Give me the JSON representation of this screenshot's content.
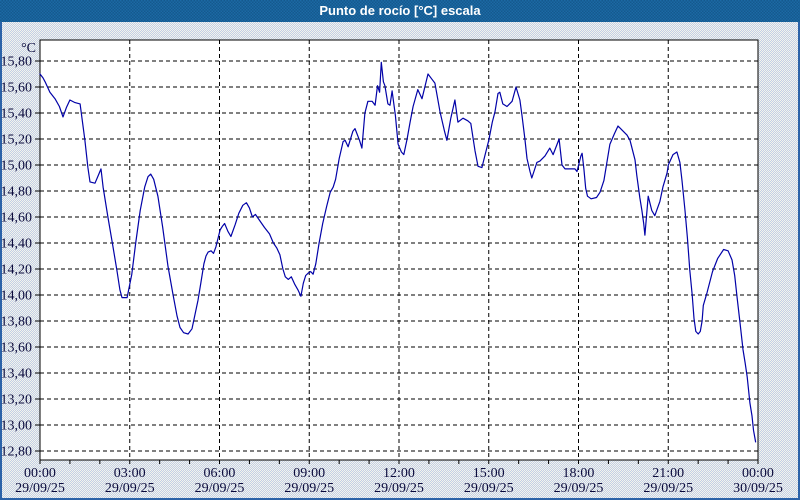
{
  "window": {
    "title": "Punto de rocío [°C] escala",
    "colors": {
      "titlebar": "#1c69a4",
      "border": "#2b62a8",
      "background": "#f3f4ed",
      "plot_background": "#ffffff",
      "grid": "#000000",
      "label": "#0b0b3c",
      "line": "#0202a8",
      "title_text": "#ffffff"
    }
  },
  "chart_data": {
    "type": "line",
    "title": "Punto de rocío [°C] escala",
    "ylabel": "°C",
    "unit_label": "°C",
    "ylim": [
      12.8,
      15.8
    ],
    "y_tick_step": 0.2,
    "grid": "dotted",
    "legend_position": "none",
    "y_tick_labels": [
      "15,80",
      "15,60",
      "15,40",
      "15,20",
      "15,00",
      "14,80",
      "14,60",
      "14,40",
      "14,20",
      "14,00",
      "13,80",
      "13,60",
      "13,40",
      "13,20",
      "13,00",
      "12,80"
    ],
    "y_tick_values": [
      15.8,
      15.6,
      15.4,
      15.2,
      15.0,
      14.8,
      14.6,
      14.4,
      14.2,
      14.0,
      13.8,
      13.6,
      13.4,
      13.2,
      13.0,
      12.8
    ],
    "x_range_hours": [
      0,
      24
    ],
    "x_minor_tick_hours": 1,
    "x_major_ticks": [
      {
        "hour": 0,
        "time": "00:00",
        "date": "29/09/25"
      },
      {
        "hour": 3,
        "time": "03:00",
        "date": "29/09/25"
      },
      {
        "hour": 6,
        "time": "06:00",
        "date": "29/09/25"
      },
      {
        "hour": 9,
        "time": "09:00",
        "date": "29/09/25"
      },
      {
        "hour": 12,
        "time": "12:00",
        "date": "29/09/25"
      },
      {
        "hour": 15,
        "time": "15:00",
        "date": "29/09/25"
      },
      {
        "hour": 18,
        "time": "18:00",
        "date": "29/09/25"
      },
      {
        "hour": 21,
        "time": "21:00",
        "date": "29/09/25"
      },
      {
        "hour": 24,
        "time": "00:00",
        "date": "30/09/25"
      }
    ],
    "series": [
      {
        "name": "Punto de rocío",
        "color": "#0202a8",
        "points_hour_value": [
          [
            0.0,
            15.7
          ],
          [
            0.1,
            15.67
          ],
          [
            0.17,
            15.64
          ],
          [
            0.33,
            15.56
          ],
          [
            0.5,
            15.51
          ],
          [
            0.65,
            15.45
          ],
          [
            0.77,
            15.37
          ],
          [
            0.88,
            15.44
          ],
          [
            1.0,
            15.5
          ],
          [
            1.17,
            15.48
          ],
          [
            1.34,
            15.47
          ],
          [
            1.5,
            15.19
          ],
          [
            1.6,
            14.98
          ],
          [
            1.67,
            14.87
          ],
          [
            1.84,
            14.86
          ],
          [
            1.95,
            14.92
          ],
          [
            2.04,
            14.97
          ],
          [
            2.11,
            14.83
          ],
          [
            2.27,
            14.6
          ],
          [
            2.44,
            14.37
          ],
          [
            2.57,
            14.19
          ],
          [
            2.67,
            14.04
          ],
          [
            2.74,
            13.98
          ],
          [
            2.91,
            13.98
          ],
          [
            3.07,
            14.16
          ],
          [
            3.2,
            14.4
          ],
          [
            3.35,
            14.65
          ],
          [
            3.5,
            14.83
          ],
          [
            3.61,
            14.91
          ],
          [
            3.7,
            14.93
          ],
          [
            3.8,
            14.89
          ],
          [
            3.94,
            14.76
          ],
          [
            4.1,
            14.52
          ],
          [
            4.28,
            14.22
          ],
          [
            4.45,
            14.0
          ],
          [
            4.58,
            13.84
          ],
          [
            4.68,
            13.75
          ],
          [
            4.8,
            13.71
          ],
          [
            4.95,
            13.7
          ],
          [
            5.08,
            13.74
          ],
          [
            5.18,
            13.85
          ],
          [
            5.28,
            13.96
          ],
          [
            5.38,
            14.1
          ],
          [
            5.48,
            14.24
          ],
          [
            5.55,
            14.3
          ],
          [
            5.62,
            14.33
          ],
          [
            5.72,
            14.34
          ],
          [
            5.8,
            14.32
          ],
          [
            5.88,
            14.37
          ],
          [
            6.02,
            14.5
          ],
          [
            6.1,
            14.53
          ],
          [
            6.17,
            14.55
          ],
          [
            6.28,
            14.49
          ],
          [
            6.38,
            14.45
          ],
          [
            6.52,
            14.54
          ],
          [
            6.65,
            14.63
          ],
          [
            6.78,
            14.69
          ],
          [
            6.9,
            14.71
          ],
          [
            7.0,
            14.67
          ],
          [
            7.1,
            14.6
          ],
          [
            7.2,
            14.62
          ],
          [
            7.35,
            14.57
          ],
          [
            7.5,
            14.52
          ],
          [
            7.67,
            14.47
          ],
          [
            7.8,
            14.4
          ],
          [
            7.92,
            14.36
          ],
          [
            8.02,
            14.31
          ],
          [
            8.12,
            14.2
          ],
          [
            8.2,
            14.14
          ],
          [
            8.3,
            14.12
          ],
          [
            8.4,
            14.14
          ],
          [
            8.52,
            14.08
          ],
          [
            8.62,
            14.04
          ],
          [
            8.72,
            13.99
          ],
          [
            8.8,
            14.09
          ],
          [
            8.88,
            14.15
          ],
          [
            8.97,
            14.17
          ],
          [
            9.05,
            14.18
          ],
          [
            9.13,
            14.16
          ],
          [
            9.22,
            14.24
          ],
          [
            9.33,
            14.4
          ],
          [
            9.45,
            14.55
          ],
          [
            9.58,
            14.68
          ],
          [
            9.7,
            14.79
          ],
          [
            9.8,
            14.83
          ],
          [
            9.88,
            14.89
          ],
          [
            10.0,
            15.05
          ],
          [
            10.13,
            15.18
          ],
          [
            10.2,
            15.19
          ],
          [
            10.3,
            15.14
          ],
          [
            10.46,
            15.26
          ],
          [
            10.53,
            15.28
          ],
          [
            10.68,
            15.19
          ],
          [
            10.76,
            15.13
          ],
          [
            10.86,
            15.4
          ],
          [
            10.96,
            15.49
          ],
          [
            11.1,
            15.49
          ],
          [
            11.2,
            15.46
          ],
          [
            11.28,
            15.61
          ],
          [
            11.35,
            15.56
          ],
          [
            11.41,
            15.79
          ],
          [
            11.48,
            15.64
          ],
          [
            11.53,
            15.61
          ],
          [
            11.63,
            15.47
          ],
          [
            11.7,
            15.46
          ],
          [
            11.77,
            15.57
          ],
          [
            11.88,
            15.38
          ],
          [
            11.97,
            15.16
          ],
          [
            12.08,
            15.1
          ],
          [
            12.16,
            15.08
          ],
          [
            12.27,
            15.2
          ],
          [
            12.37,
            15.33
          ],
          [
            12.47,
            15.45
          ],
          [
            12.63,
            15.58
          ],
          [
            12.77,
            15.51
          ],
          [
            12.97,
            15.7
          ],
          [
            13.1,
            15.66
          ],
          [
            13.2,
            15.63
          ],
          [
            13.37,
            15.41
          ],
          [
            13.52,
            15.26
          ],
          [
            13.6,
            15.19
          ],
          [
            13.73,
            15.36
          ],
          [
            13.87,
            15.5
          ],
          [
            13.97,
            15.33
          ],
          [
            14.14,
            15.36
          ],
          [
            14.3,
            15.34
          ],
          [
            14.4,
            15.32
          ],
          [
            14.54,
            15.11
          ],
          [
            14.64,
            14.99
          ],
          [
            14.77,
            14.98
          ],
          [
            14.9,
            15.1
          ],
          [
            15.0,
            15.19
          ],
          [
            15.12,
            15.33
          ],
          [
            15.21,
            15.41
          ],
          [
            15.31,
            15.55
          ],
          [
            15.37,
            15.56
          ],
          [
            15.47,
            15.47
          ],
          [
            15.61,
            15.45
          ],
          [
            15.78,
            15.49
          ],
          [
            15.91,
            15.6
          ],
          [
            16.04,
            15.5
          ],
          [
            16.11,
            15.38
          ],
          [
            16.21,
            15.2
          ],
          [
            16.28,
            15.05
          ],
          [
            16.38,
            14.95
          ],
          [
            16.44,
            14.9
          ],
          [
            16.61,
            15.02
          ],
          [
            16.71,
            15.03
          ],
          [
            16.88,
            15.07
          ],
          [
            17.04,
            15.13
          ],
          [
            17.15,
            15.08
          ],
          [
            17.35,
            15.2
          ],
          [
            17.45,
            15.0
          ],
          [
            17.55,
            14.97
          ],
          [
            17.88,
            14.97
          ],
          [
            17.95,
            14.95
          ],
          [
            18.08,
            15.07
          ],
          [
            18.12,
            15.09
          ],
          [
            18.18,
            14.97
          ],
          [
            18.24,
            14.82
          ],
          [
            18.3,
            14.76
          ],
          [
            18.42,
            14.74
          ],
          [
            18.6,
            14.75
          ],
          [
            18.72,
            14.79
          ],
          [
            18.85,
            14.88
          ],
          [
            18.95,
            15.02
          ],
          [
            19.05,
            15.16
          ],
          [
            19.2,
            15.24
          ],
          [
            19.32,
            15.3
          ],
          [
            19.45,
            15.27
          ],
          [
            19.62,
            15.23
          ],
          [
            19.72,
            15.19
          ],
          [
            19.89,
            15.04
          ],
          [
            19.95,
            14.92
          ],
          [
            20.05,
            14.75
          ],
          [
            20.12,
            14.65
          ],
          [
            20.18,
            14.55
          ],
          [
            20.22,
            14.46
          ],
          [
            20.33,
            14.76
          ],
          [
            20.45,
            14.65
          ],
          [
            20.55,
            14.61
          ],
          [
            20.72,
            14.72
          ],
          [
            20.82,
            14.83
          ],
          [
            20.96,
            14.94
          ],
          [
            21.0,
            15.0
          ],
          [
            21.16,
            15.08
          ],
          [
            21.29,
            15.1
          ],
          [
            21.39,
            15.02
          ],
          [
            21.46,
            14.88
          ],
          [
            21.56,
            14.65
          ],
          [
            21.64,
            14.44
          ],
          [
            21.72,
            14.19
          ],
          [
            21.8,
            14.0
          ],
          [
            21.86,
            13.82
          ],
          [
            21.92,
            13.72
          ],
          [
            22.0,
            13.7
          ],
          [
            22.07,
            13.72
          ],
          [
            22.13,
            13.8
          ],
          [
            22.17,
            13.92
          ],
          [
            22.3,
            14.02
          ],
          [
            22.48,
            14.18
          ],
          [
            22.65,
            14.28
          ],
          [
            22.85,
            14.35
          ],
          [
            23.0,
            14.34
          ],
          [
            23.13,
            14.27
          ],
          [
            23.22,
            14.15
          ],
          [
            23.3,
            13.98
          ],
          [
            23.4,
            13.78
          ],
          [
            23.5,
            13.58
          ],
          [
            23.57,
            13.48
          ],
          [
            23.64,
            13.37
          ],
          [
            23.73,
            13.17
          ],
          [
            23.8,
            13.07
          ],
          [
            23.85,
            12.96
          ],
          [
            23.92,
            12.87
          ]
        ]
      }
    ]
  }
}
